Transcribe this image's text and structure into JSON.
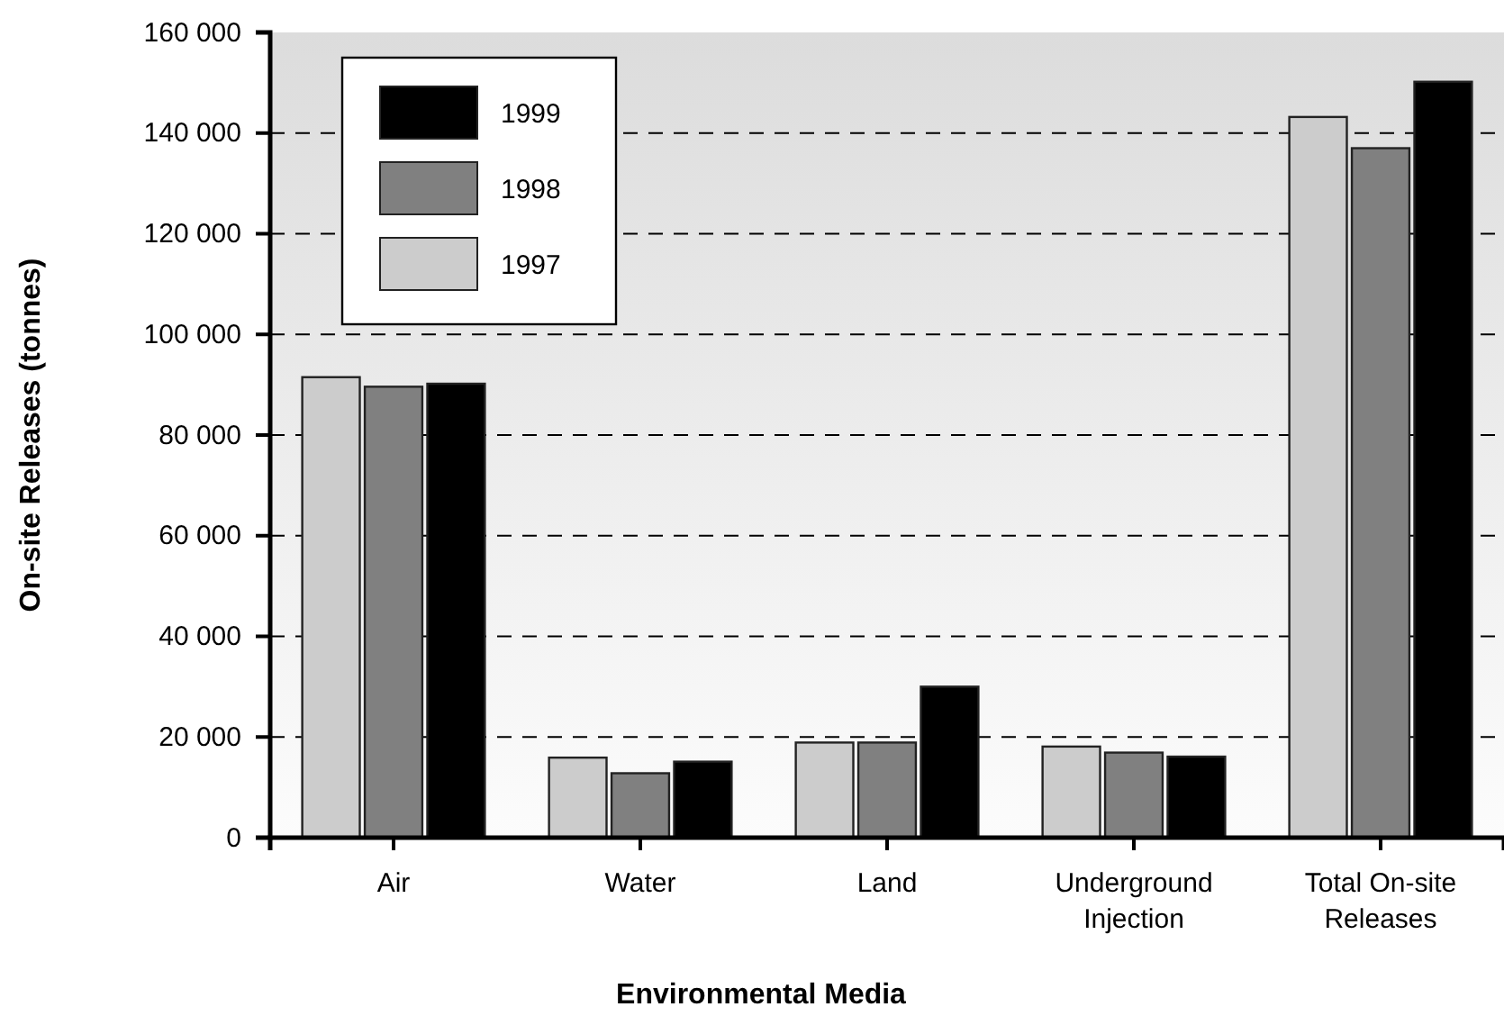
{
  "chart_data": {
    "type": "bar",
    "xlabel": "Environmental Media",
    "ylabel": "On-site Releases (tonnes)",
    "categories": [
      "Air",
      "Water",
      "Land",
      "Underground Injection",
      "Total On-site Releases"
    ],
    "series": [
      {
        "name": "1997",
        "color": "#cccccc",
        "values": [
          91500,
          15900,
          18900,
          18100,
          143200
        ]
      },
      {
        "name": "1998",
        "color": "#808080",
        "values": [
          89600,
          12800,
          18900,
          16900,
          137000
        ]
      },
      {
        "name": "1999",
        "color": "#000000",
        "values": [
          90200,
          15100,
          30000,
          16100,
          150200
        ]
      }
    ],
    "ylim": [
      0,
      160000
    ],
    "yticks": [
      {
        "value": 0,
        "label": "0"
      },
      {
        "value": 20000,
        "label": "20 000"
      },
      {
        "value": 40000,
        "label": "40 000"
      },
      {
        "value": 60000,
        "label": "60 000"
      },
      {
        "value": 80000,
        "label": "80 000"
      },
      {
        "value": 100000,
        "label": "100 000"
      },
      {
        "value": 120000,
        "label": "120 000"
      },
      {
        "value": 140000,
        "label": "140 000"
      },
      {
        "value": 160000,
        "label": "160 000"
      }
    ],
    "grid": "y",
    "legend": "top left"
  }
}
